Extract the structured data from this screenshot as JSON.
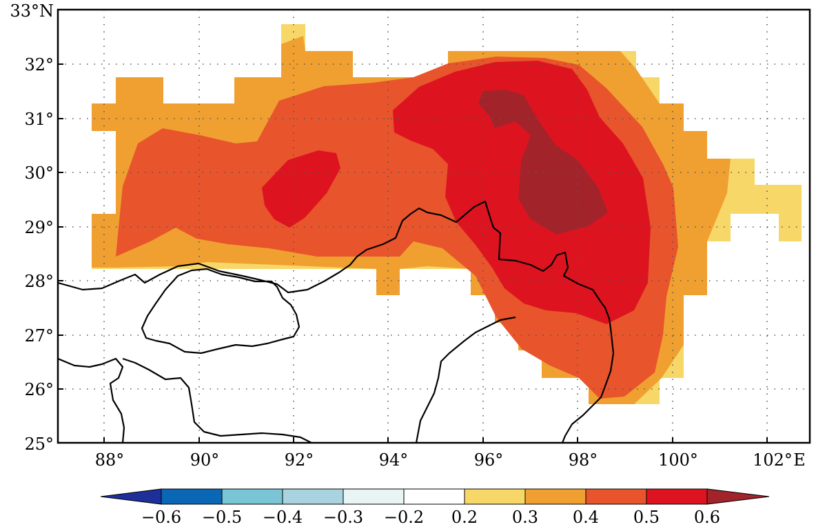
{
  "map": {
    "lat_ticks": [
      "33°N",
      "32°",
      "31°",
      "30°",
      "29°",
      "28°",
      "27°",
      "26°",
      "25°"
    ],
    "lon_ticks": [
      "88°",
      "90°",
      "92°",
      "94°",
      "96°",
      "98°",
      "100°",
      "102°"
    ],
    "lon_unit": "E",
    "lon_range": [
      87.0,
      102.9
    ],
    "lat_range": [
      25.0,
      33.0
    ]
  },
  "colorbar": {
    "labels": [
      "-0.6",
      "-0.5",
      "-0.4",
      "-0.3",
      "-0.2",
      "0.2",
      "0.3",
      "0.4",
      "0.5",
      "0.6"
    ],
    "colors": {
      "below_min": "#1f2f9a",
      "b1": "#0a67b5",
      "b2": "#79c4d5",
      "b3": "#a9d3df",
      "b4": "#e9f4f5",
      "b5": "#ffffff",
      "b6": "#f7d768",
      "b7": "#f0a030",
      "b8": "#e8542c",
      "b9": "#dd141f",
      "above_max": "#a3232b"
    }
  },
  "chart_data": {
    "type": "heatmap",
    "title": "",
    "xlabel": "E",
    "ylabel": "N",
    "xlim": [
      87.0,
      102.9
    ],
    "ylim": [
      25.0,
      33.0
    ],
    "levels": [
      -0.6,
      -0.5,
      -0.4,
      -0.3,
      -0.2,
      0.2,
      0.3,
      0.4,
      0.5,
      0.6
    ],
    "extend": "both",
    "note": "Filled-contour field with positive values 0.2–>0.6 over the southeastern Tibetan Plateau; maximum (>0.6) near 97°E–98.5°E, 29.5°N–31°N."
  }
}
